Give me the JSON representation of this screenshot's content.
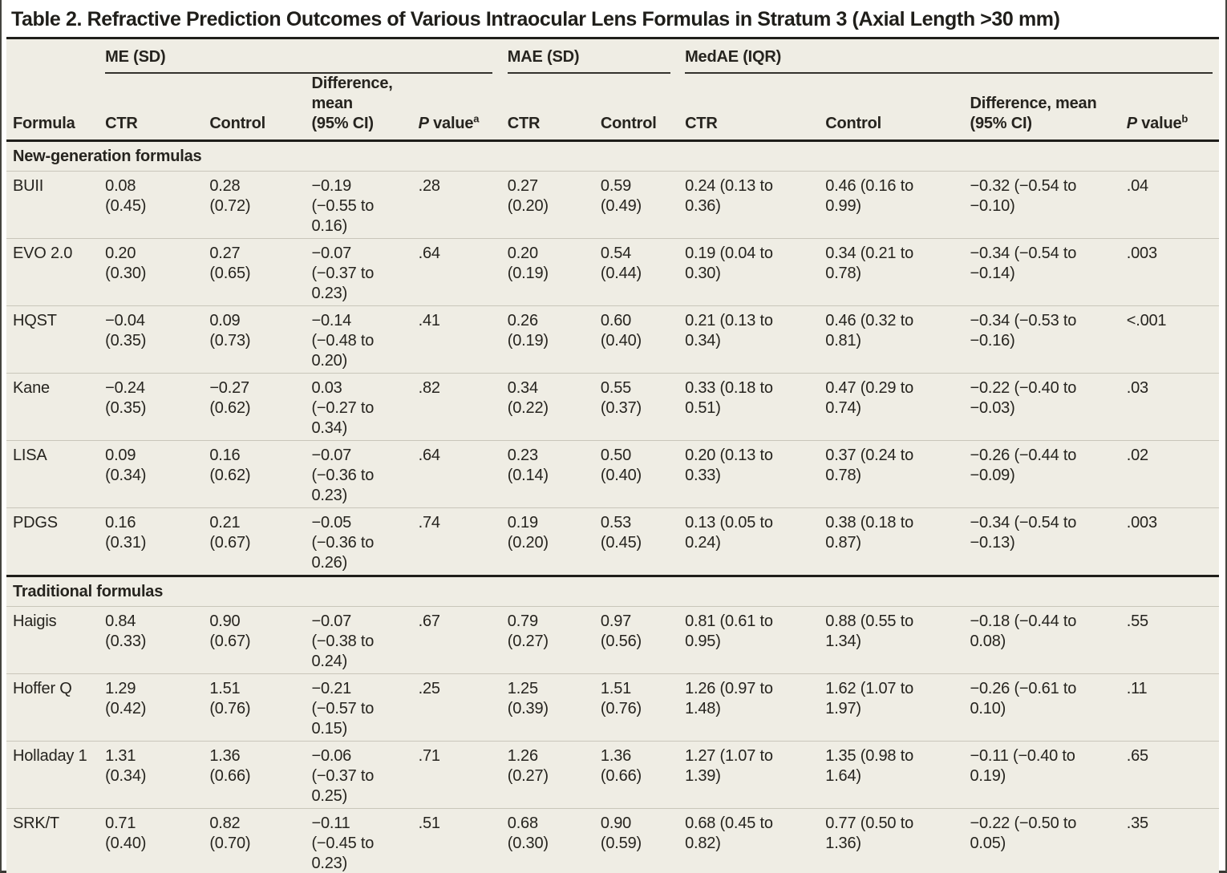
{
  "title": "Table 2. Refractive Prediction Outcomes of Various Intraocular Lens Formulas in Stratum 3 (Axial Length >30 mm)",
  "table": {
    "header": {
      "formula": "Formula",
      "me": {
        "label": "ME (SD)",
        "ctr": "CTR",
        "control": "Control",
        "diff": "Difference,\nmean\n(95% CI)",
        "p": "P",
        "p_rest": " value",
        "p_sup": "a"
      },
      "mae": {
        "label": "MAE (SD)",
        "ctr": "CTR",
        "control": "Control"
      },
      "medae": {
        "label": "MedAE (IQR)",
        "ctr": "CTR",
        "control": "Control",
        "diff": "Difference, mean\n(95% CI)",
        "p": "P",
        "p_rest": " value",
        "p_sup": "b"
      }
    },
    "sections": [
      {
        "label": "New-generation formulas",
        "rows": [
          {
            "formula": "BUII",
            "cells": [
              "0.08\n(0.45)",
              "0.28\n(0.72)",
              "−0.19\n(−0.55 to\n0.16)",
              ".28",
              "0.27\n(0.20)",
              "0.59\n(0.49)",
              "0.24 (0.13 to\n0.36)",
              "0.46 (0.16 to\n0.99)",
              "−0.32 (−0.54 to\n−0.10)",
              ".04"
            ]
          },
          {
            "formula": "EVO 2.0",
            "cells": [
              "0.20\n(0.30)",
              "0.27\n(0.65)",
              "−0.07\n(−0.37 to\n0.23)",
              ".64",
              "0.20\n(0.19)",
              "0.54\n(0.44)",
              "0.19 (0.04 to\n0.30)",
              "0.34 (0.21 to\n0.78)",
              "−0.34 (−0.54 to\n−0.14)",
              ".003"
            ]
          },
          {
            "formula": "HQST",
            "cells": [
              "−0.04\n(0.35)",
              "0.09\n(0.73)",
              "−0.14\n(−0.48 to\n0.20)",
              ".41",
              "0.26\n(0.19)",
              "0.60\n(0.40)",
              "0.21 (0.13 to\n0.34)",
              "0.46 (0.32 to\n0.81)",
              "−0.34 (−0.53 to\n−0.16)",
              "<.001"
            ]
          },
          {
            "formula": "Kane",
            "cells": [
              "−0.24\n(0.35)",
              "−0.27\n(0.62)",
              "0.03\n(−0.27 to\n0.34)",
              ".82",
              "0.34\n(0.22)",
              "0.55\n(0.37)",
              "0.33 (0.18 to\n0.51)",
              "0.47 (0.29 to\n0.74)",
              "−0.22 (−0.40 to\n−0.03)",
              ".03"
            ]
          },
          {
            "formula": "LISA",
            "cells": [
              "0.09\n(0.34)",
              "0.16\n(0.62)",
              "−0.07\n(−0.36 to\n0.23)",
              ".64",
              "0.23\n(0.14)",
              "0.50\n(0.40)",
              "0.20 (0.13 to\n0.33)",
              "0.37 (0.24 to\n0.78)",
              "−0.26 (−0.44 to\n−0.09)",
              ".02"
            ]
          },
          {
            "formula": "PDGS",
            "cells": [
              "0.16\n(0.31)",
              "0.21\n(0.67)",
              "−0.05\n(−0.36 to\n0.26)",
              ".74",
              "0.19\n(0.20)",
              "0.53\n(0.45)",
              "0.13 (0.05 to\n0.24)",
              "0.38 (0.18 to\n0.87)",
              "−0.34 (−0.54 to\n−0.13)",
              ".003"
            ]
          }
        ]
      },
      {
        "label": "Traditional formulas",
        "rows": [
          {
            "formula": "Haigis",
            "cells": [
              "0.84\n(0.33)",
              "0.90\n(0.67)",
              "−0.07\n(−0.38 to\n0.24)",
              ".67",
              "0.79\n(0.27)",
              "0.97\n(0.56)",
              "0.81 (0.61 to\n0.95)",
              "0.88 (0.55 to\n1.34)",
              "−0.18 (−0.44 to\n0.08)",
              ".55"
            ]
          },
          {
            "formula": "Hoffer Q",
            "cells": [
              "1.29\n(0.42)",
              "1.51\n(0.76)",
              "−0.21\n(−0.57 to\n0.15)",
              ".25",
              "1.25\n(0.39)",
              "1.51\n(0.76)",
              "1.26 (0.97 to\n1.48)",
              "1.62 (1.07 to\n1.97)",
              "−0.26 (−0.61 to\n0.10)",
              ".11"
            ]
          },
          {
            "formula": "Holladay 1",
            "cells": [
              "1.31\n(0.34)",
              "1.36\n(0.66)",
              "−0.06\n(−0.37 to\n0.25)",
              ".71",
              "1.26\n(0.27)",
              "1.36\n(0.66)",
              "1.27 (1.07 to\n1.39)",
              "1.35 (0.98 to\n1.64)",
              "−0.11 (−0.40 to\n0.19)",
              ".65"
            ]
          },
          {
            "formula": "SRK/T",
            "cells": [
              "0.71\n(0.40)",
              "0.82\n(0.70)",
              "−0.11\n(−0.45 to\n0.23)",
              ".51",
              "0.68\n(0.30)",
              "0.90\n(0.59)",
              "0.68 (0.45 to\n0.82)",
              "0.77 (0.50 to\n1.36)",
              "−0.22 (−0.50 to\n0.05)",
              ".35"
            ]
          }
        ]
      }
    ]
  }
}
